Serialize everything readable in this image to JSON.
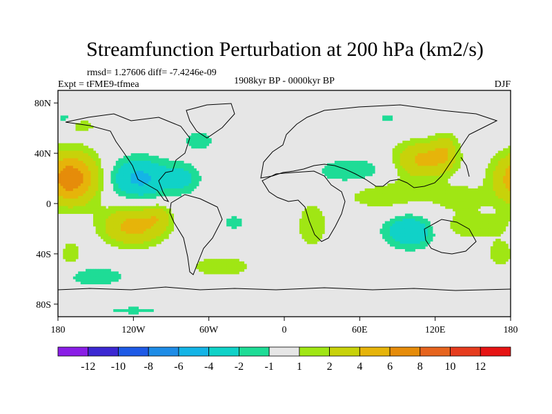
{
  "chart_data": {
    "type": "heatmap",
    "title": "Streamfunction Perturbation at 200 hPa (km2/s)",
    "stats": "rmsd= 1.27606 diff= -7.4246e-09",
    "period": "1908kyr BP - 0000kyr BP",
    "experiment": "Expt = tFME9-tfmea",
    "season": "DJF",
    "xlim": [
      -180,
      180
    ],
    "ylim": [
      -90,
      90
    ],
    "x_ticks": [
      {
        "value": -180,
        "label": "180"
      },
      {
        "value": -120,
        "label": "120W"
      },
      {
        "value": -60,
        "label": "60W"
      },
      {
        "value": 0,
        "label": "0"
      },
      {
        "value": 60,
        "label": "60E"
      },
      {
        "value": 120,
        "label": "120E"
      },
      {
        "value": 180,
        "label": "180"
      }
    ],
    "y_ticks": [
      {
        "value": 80,
        "label": "80N"
      },
      {
        "value": 40,
        "label": "40N"
      },
      {
        "value": 0,
        "label": "0"
      },
      {
        "value": -40,
        "label": "40S"
      },
      {
        "value": -80,
        "label": "80S"
      }
    ],
    "levels": [
      -12,
      -10,
      -8,
      -6,
      -4,
      -2,
      -1,
      1,
      2,
      4,
      6,
      8,
      10,
      12
    ],
    "level_labels": [
      "-12",
      "-10",
      "-8",
      "-6",
      "-4",
      "-2",
      "-1",
      "1",
      "2",
      "4",
      "6",
      "8",
      "10",
      "12"
    ],
    "colors": [
      "#8a1ee6",
      "#3c28d2",
      "#1e5ae6",
      "#1e8ce6",
      "#14b4e6",
      "#10d2c8",
      "#1edc96",
      "#e6e6e6",
      "#a0e614",
      "#c8d20a",
      "#e6b40a",
      "#e68c0a",
      "#e6641e",
      "#e63c1e",
      "#e61414"
    ],
    "blobs": [
      {
        "lon": -170,
        "lat": 20,
        "rlon": 22,
        "rlat": 20,
        "amp": 7.5
      },
      {
        "lon": 190,
        "lat": 20,
        "rlon": 22,
        "rlat": 20,
        "amp": 6.5
      },
      {
        "lon": 110,
        "lat": 35,
        "rlon": 22,
        "rlat": 14,
        "amp": 4.5
      },
      {
        "lon": 128,
        "lat": 42,
        "rlon": 10,
        "rlat": 14,
        "amp": 2.5
      },
      {
        "lon": 80,
        "lat": 8,
        "rlon": 38,
        "rlat": 14,
        "amp": 1.8
      },
      {
        "lon": 140,
        "lat": 5,
        "rlon": 22,
        "rlat": 10,
        "amp": 1.6
      },
      {
        "lon": -120,
        "lat": -18,
        "rlon": 24,
        "rlat": 15,
        "amp": 4.8
      },
      {
        "lon": -100,
        "lat": -10,
        "rlon": 10,
        "rlat": 10,
        "amp": 2.0
      },
      {
        "lon": -50,
        "lat": -50,
        "rlon": 26,
        "rlat": 9,
        "amp": 1.8
      },
      {
        "lon": 22,
        "lat": -18,
        "rlon": 12,
        "rlat": 18,
        "amp": 2.0
      },
      {
        "lon": -160,
        "lat": 62,
        "rlon": 10,
        "rlat": 5,
        "amp": 1.6
      },
      {
        "lon": 150,
        "lat": -18,
        "rlon": 35,
        "rlat": 12,
        "amp": 1.6
      },
      {
        "lon": -170,
        "lat": -40,
        "rlon": 9,
        "rlat": 12,
        "amp": 1.6
      },
      {
        "lon": 172,
        "lat": -40,
        "rlon": 10,
        "rlat": 10,
        "amp": 1.8
      },
      {
        "lon": 82,
        "lat": 68,
        "rlon": 7,
        "rlat": 4,
        "amp": -1.5
      },
      {
        "lon": -115,
        "lat": 20,
        "rlon": 24,
        "rlat": 16,
        "amp": -4.5
      },
      {
        "lon": -80,
        "lat": 20,
        "rlon": 14,
        "rlat": 12,
        "amp": -2.2
      },
      {
        "lon": -68,
        "lat": 50,
        "rlon": 14,
        "rlat": 9,
        "amp": -1.6
      },
      {
        "lon": 55,
        "lat": 25,
        "rlon": 32,
        "rlat": 12,
        "amp": -2.0
      },
      {
        "lon": 100,
        "lat": -22,
        "rlon": 20,
        "rlat": 13,
        "amp": -4.0
      },
      {
        "lon": -150,
        "lat": -58,
        "rlon": 26,
        "rlat": 8,
        "amp": -1.8
      },
      {
        "lon": -120,
        "lat": -85,
        "rlon": 30,
        "rlat": 4,
        "amp": -1.3
      },
      {
        "lon": -40,
        "lat": -15,
        "rlon": 10,
        "rlat": 8,
        "amp": -1.4
      },
      {
        "lon": -175,
        "lat": 68,
        "rlon": 10,
        "rlat": 5,
        "amp": -1.2
      }
    ]
  }
}
